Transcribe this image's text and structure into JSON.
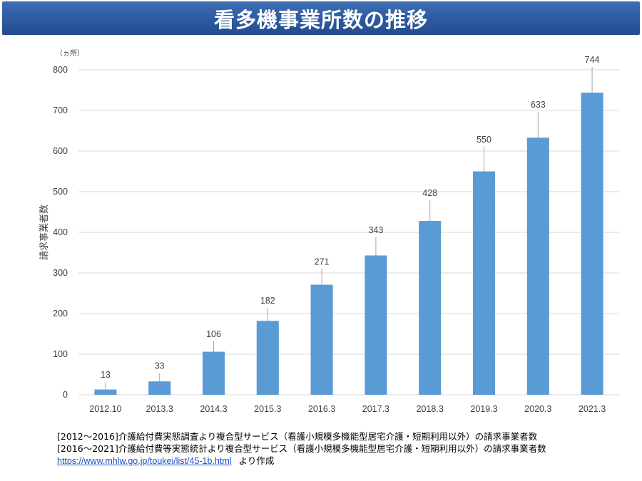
{
  "title": "看多機事業所数の推移",
  "chart_data": {
    "type": "bar",
    "unit": "（ヵ所）",
    "ylabel": "請求事業者数",
    "ylim": [
      0,
      800
    ],
    "yticks": [
      0,
      100,
      200,
      300,
      400,
      500,
      600,
      700,
      800
    ],
    "grid": true,
    "categories": [
      "2012.10",
      "2013.3",
      "2014.3",
      "2015.3",
      "2016.3",
      "2017.3",
      "2018.3",
      "2019.3",
      "2020.3",
      "2021.3"
    ],
    "values": [
      13,
      33,
      106,
      182,
      271,
      343,
      428,
      550,
      633,
      744
    ],
    "bar_color": "#5b9bd5"
  },
  "source": {
    "line1": "[2012～2016]介護給付費実態調査より複合型サービス（看護小規模多機能型居宅介護・短期利用以外）の請求事業者数",
    "line2": "[2016～2021]介護給付費等実態統計より複合型サービス（看護小規模多機能型居宅介護・短期利用以外）の請求事業者数",
    "link": "https://www.mhlw.go.jp/toukei/list/45-1b.html",
    "suffix": "より作成"
  }
}
